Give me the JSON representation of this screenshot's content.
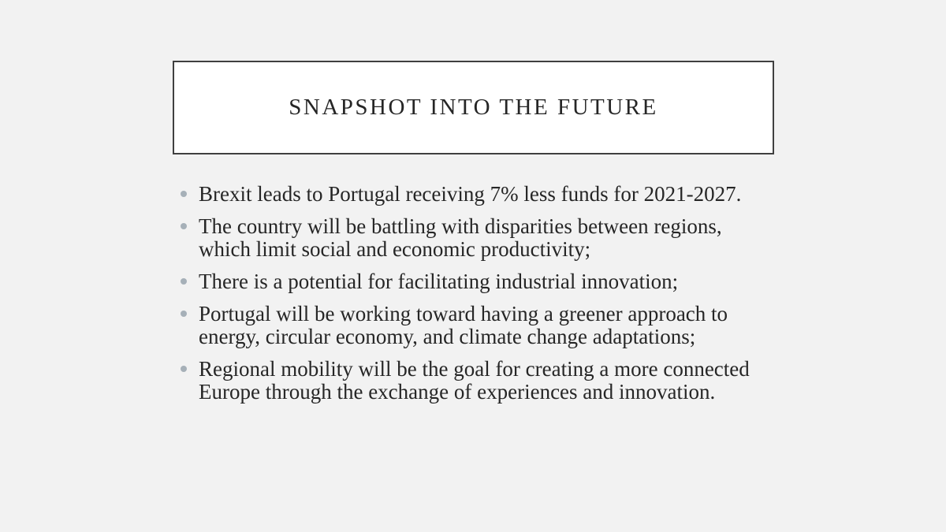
{
  "title": "SNAPSHOT INTO THE FUTURE",
  "bullets": [
    "Brexit leads to Portugal receiving 7% less funds for 2021-2027.",
    "The country will be battling with disparities between regions, which limit social and economic productivity;",
    "There is a potential for facilitating industrial innovation;",
    "Portugal will be working toward having a greener approach to energy, circular economy, and climate change adaptations;",
    "Regional mobility will be the goal for creating a more connected Europe through the exchange of experiences and innovation."
  ]
}
